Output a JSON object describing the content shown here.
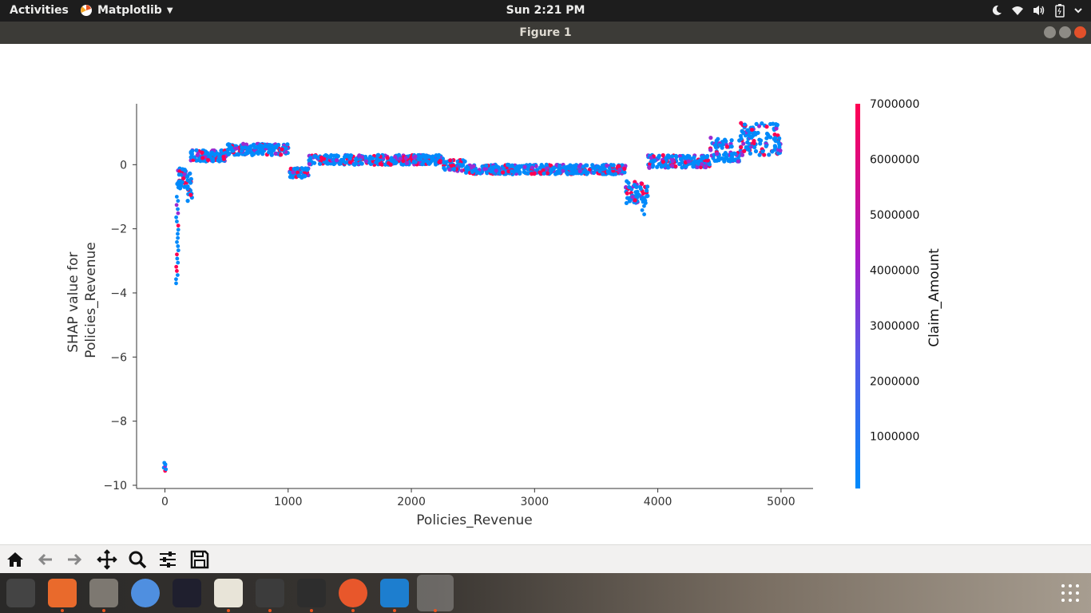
{
  "topbar": {
    "activities": "Activities",
    "app_menu": "Matplotlib",
    "clock": "Sun  2:21 PM",
    "tray_icons": [
      "night-light-icon",
      "wifi-icon",
      "volume-icon",
      "battery-icon",
      "power-menu-icon"
    ]
  },
  "window": {
    "title": "Figure 1"
  },
  "toolbar": {
    "buttons": [
      "home-icon",
      "back-icon",
      "forward-icon",
      "pan-icon",
      "zoom-icon",
      "configure-subplots-icon",
      "save-icon"
    ]
  },
  "dock": {
    "apps": [
      "videos-icon",
      "software-center-icon",
      "files-icon",
      "chromium-icon",
      "intellij-icon",
      "text-editor-icon",
      "sublime-icon",
      "terminal-icon",
      "firefox-icon",
      "vscode-icon",
      "matplotlib-figure-icon"
    ],
    "show_apps": "show-applications-icon"
  },
  "colors": {
    "low": "#008afb",
    "high": "#ff0052"
  },
  "chart_data": {
    "type": "scatter",
    "xlabel": "Policies_Revenue",
    "ylabel_lines": [
      "SHAP value for",
      "Policies_Revenue"
    ],
    "xlim": [
      -230,
      5260
    ],
    "ylim": [
      -10.1,
      1.9
    ],
    "xticks": [
      0,
      1000,
      2000,
      3000,
      4000,
      5000
    ],
    "yticks": [
      0,
      -2,
      -4,
      -6,
      -8,
      -10
    ],
    "ytick_labels": [
      "0",
      "−2",
      "−4",
      "−6",
      "−8",
      "−10"
    ],
    "colorbar": {
      "label": "Claim_Amount",
      "range": [
        60000,
        7000000
      ],
      "ticks": [
        1000000,
        2000000,
        3000000,
        4000000,
        5000000,
        6000000,
        7000000
      ],
      "tick_labels": [
        "1000000",
        "2000000",
        "3000000",
        "4000000",
        "5000000",
        "6000000",
        "7000000"
      ]
    },
    "bands": [
      {
        "x": [
          100,
          140
        ],
        "y": [
          -0.8,
          -0.1
        ]
      },
      {
        "x": [
          140,
          180
        ],
        "y": [
          -0.7,
          -0.1
        ]
      },
      {
        "x": [
          180,
          220
        ],
        "y": [
          -1.25,
          -0.25
        ]
      },
      {
        "x": [
          210,
          510
        ],
        "y": [
          0.1,
          0.45
        ]
      },
      {
        "x": [
          510,
          1010
        ],
        "y": [
          0.3,
          0.65
        ]
      },
      {
        "x": [
          1010,
          1170
        ],
        "y": [
          -0.4,
          -0.1
        ]
      },
      {
        "x": [
          1170,
          2260
        ],
        "y": [
          0.0,
          0.3
        ]
      },
      {
        "x": [
          2260,
          2440
        ],
        "y": [
          -0.2,
          0.15
        ]
      },
      {
        "x": [
          2440,
          3740
        ],
        "y": [
          -0.3,
          0.0
        ]
      },
      {
        "x": [
          3740,
          3920
        ],
        "y": [
          -1.2,
          -0.5
        ]
      },
      {
        "x": [
          3920,
          4420
        ],
        "y": [
          -0.1,
          0.3
        ]
      },
      {
        "x": [
          4420,
          4600
        ],
        "y": [
          0.1,
          0.85
        ]
      },
      {
        "x": [
          4600,
          4660
        ],
        "y": [
          0.1,
          0.4
        ]
      },
      {
        "x": [
          4660,
          5000
        ],
        "y": [
          0.3,
          1.3
        ]
      }
    ],
    "tails": [
      {
        "x": 100,
        "y": [
          -3.7,
          -1.0
        ]
      },
      {
        "x": 3880,
        "y": [
          -1.55,
          -0.9
        ]
      },
      {
        "x": 0,
        "y": [
          -9.55,
          -9.3
        ]
      }
    ]
  }
}
